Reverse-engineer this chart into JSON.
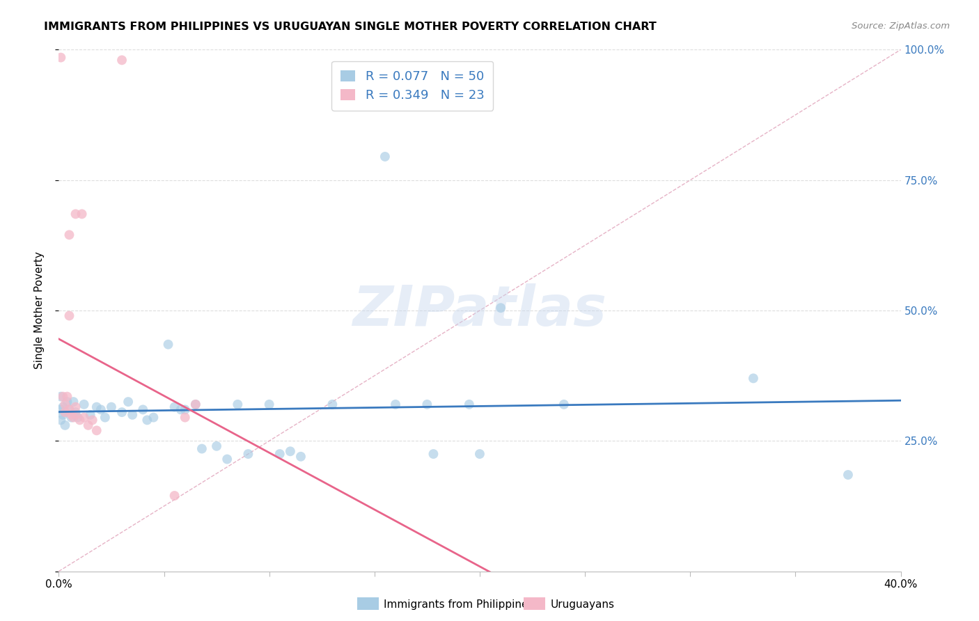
{
  "title": "IMMIGRANTS FROM PHILIPPINES VS URUGUAYAN SINGLE MOTHER POVERTY CORRELATION CHART",
  "source": "Source: ZipAtlas.com",
  "xlabel_label": "Immigrants from Philippines",
  "ylabel_label": "Single Mother Poverty",
  "xlabel2_label": "Uruguayans",
  "xlim": [
    0.0,
    0.4
  ],
  "ylim": [
    0.0,
    1.0
  ],
  "blue_R": 0.077,
  "blue_N": 50,
  "pink_R": 0.349,
  "pink_N": 23,
  "blue_color": "#a8cce4",
  "pink_color": "#f4b8c8",
  "blue_line_color": "#3a7abf",
  "pink_line_color": "#e8648a",
  "grid_color": "#dddddd",
  "blue_scatter": [
    [
      0.001,
      0.335
    ],
    [
      0.002,
      0.315
    ],
    [
      0.003,
      0.305
    ],
    [
      0.001,
      0.29
    ],
    [
      0.004,
      0.325
    ],
    [
      0.003,
      0.28
    ],
    [
      0.005,
      0.31
    ],
    [
      0.002,
      0.3
    ],
    [
      0.001,
      0.31
    ],
    [
      0.006,
      0.295
    ],
    [
      0.008,
      0.305
    ],
    [
      0.007,
      0.325
    ],
    [
      0.009,
      0.295
    ],
    [
      0.012,
      0.32
    ],
    [
      0.015,
      0.3
    ],
    [
      0.018,
      0.315
    ],
    [
      0.02,
      0.31
    ],
    [
      0.022,
      0.295
    ],
    [
      0.025,
      0.315
    ],
    [
      0.03,
      0.305
    ],
    [
      0.033,
      0.325
    ],
    [
      0.035,
      0.3
    ],
    [
      0.04,
      0.31
    ],
    [
      0.042,
      0.29
    ],
    [
      0.045,
      0.295
    ],
    [
      0.052,
      0.435
    ],
    [
      0.055,
      0.315
    ],
    [
      0.058,
      0.31
    ],
    [
      0.06,
      0.31
    ],
    [
      0.065,
      0.32
    ],
    [
      0.068,
      0.235
    ],
    [
      0.075,
      0.24
    ],
    [
      0.08,
      0.215
    ],
    [
      0.085,
      0.32
    ],
    [
      0.09,
      0.225
    ],
    [
      0.1,
      0.32
    ],
    [
      0.105,
      0.225
    ],
    [
      0.11,
      0.23
    ],
    [
      0.115,
      0.22
    ],
    [
      0.13,
      0.32
    ],
    [
      0.155,
      0.795
    ],
    [
      0.16,
      0.32
    ],
    [
      0.175,
      0.32
    ],
    [
      0.178,
      0.225
    ],
    [
      0.195,
      0.32
    ],
    [
      0.2,
      0.225
    ],
    [
      0.21,
      0.505
    ],
    [
      0.24,
      0.32
    ],
    [
      0.33,
      0.37
    ],
    [
      0.375,
      0.185
    ]
  ],
  "pink_scatter": [
    [
      0.001,
      0.985
    ],
    [
      0.03,
      0.98
    ],
    [
      0.008,
      0.685
    ],
    [
      0.011,
      0.685
    ],
    [
      0.005,
      0.645
    ],
    [
      0.005,
      0.49
    ],
    [
      0.002,
      0.335
    ],
    [
      0.003,
      0.32
    ],
    [
      0.004,
      0.335
    ],
    [
      0.003,
      0.305
    ],
    [
      0.005,
      0.31
    ],
    [
      0.006,
      0.3
    ],
    [
      0.007,
      0.295
    ],
    [
      0.008,
      0.3
    ],
    [
      0.008,
      0.315
    ],
    [
      0.01,
      0.29
    ],
    [
      0.012,
      0.295
    ],
    [
      0.014,
      0.28
    ],
    [
      0.016,
      0.29
    ],
    [
      0.018,
      0.27
    ],
    [
      0.055,
      0.145
    ],
    [
      0.06,
      0.295
    ],
    [
      0.065,
      0.32
    ]
  ],
  "watermark_text": "ZIPatlas",
  "marker_size": 100
}
